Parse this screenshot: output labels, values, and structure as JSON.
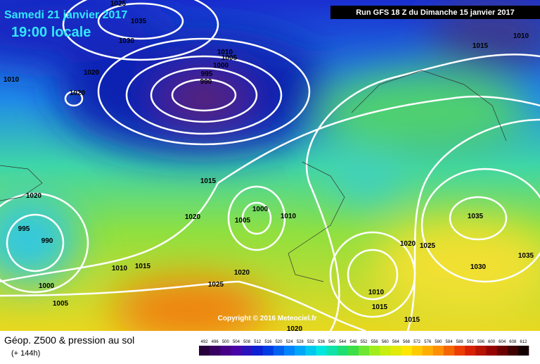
{
  "header": {
    "date": "Samedi 21 janvier 2017",
    "time": "19:00 locale",
    "run": "Run GFS 18 Z du Dimanche 15 janvier 2017"
  },
  "copyright": "Copyright © 2016 Meteociel.fr",
  "footer": {
    "title": "Géop. Z500 & pression au sol",
    "lead": "(+ 144h)"
  },
  "isobar_labels": [
    1025,
    1035,
    1030,
    1010,
    1020,
    1020,
    1010,
    1005,
    1000,
    995,
    990,
    1015,
    1010,
    1015,
    1020,
    1000,
    1005,
    1010,
    1020,
    995,
    990,
    1035,
    1020,
    1025,
    1030,
    1035,
    1010,
    1015,
    1000,
    1005,
    1020,
    1025,
    1010,
    1015,
    1015,
    1020
  ],
  "scale": [
    492,
    496,
    500,
    504,
    508,
    512,
    516,
    520,
    524,
    528,
    532,
    536,
    540,
    544,
    548,
    552,
    556,
    560,
    564,
    568,
    572,
    576,
    580,
    584,
    588,
    592,
    596,
    600,
    604,
    608,
    612
  ]
}
